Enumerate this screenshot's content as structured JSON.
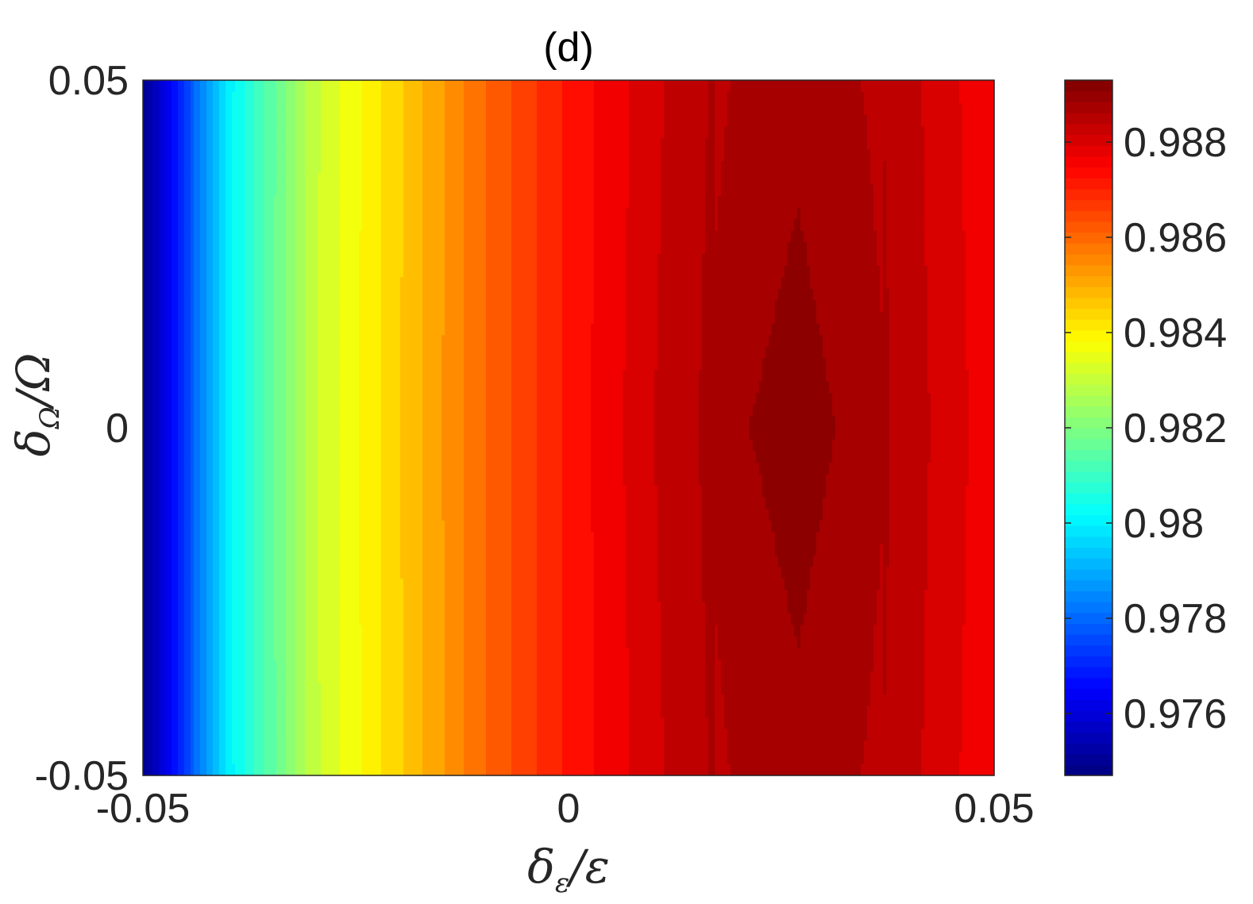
{
  "chart_data": {
    "type": "heatmap",
    "title": "(d)",
    "xlabel": {
      "main": "δ",
      "sub": "ε",
      "rest": "/ε"
    },
    "ylabel": {
      "main": "δ",
      "sub": "Ω",
      "rest": "/Ω"
    },
    "xlim": [
      -0.05,
      0.05
    ],
    "ylim": [
      -0.05,
      0.05
    ],
    "x_ticks": [
      "-0.05",
      "0",
      "0.05"
    ],
    "y_ticks": [
      "0.05",
      "0",
      "-0.05"
    ],
    "colorbar": {
      "colormap": "jet",
      "range": [
        0.9747,
        0.9893
      ],
      "ticks": [
        "0.988",
        "0.986",
        "0.984",
        "0.982",
        "0.98",
        "0.978",
        "0.976"
      ]
    },
    "field": {
      "description_values": "fidelity vs detuning; nearly independent of y, maximum near x≈0.027",
      "x": [
        -0.05,
        -0.04,
        -0.03,
        -0.02,
        -0.01,
        0.0,
        0.01,
        0.02,
        0.027,
        0.035,
        0.045,
        0.05
      ],
      "value_at_y0": [
        0.9748,
        0.98,
        0.983,
        0.9845,
        0.986,
        0.9872,
        0.9882,
        0.9889,
        0.9891,
        0.9888,
        0.988,
        0.9876
      ],
      "y_curvature": 2.6,
      "levels": 40
    }
  }
}
